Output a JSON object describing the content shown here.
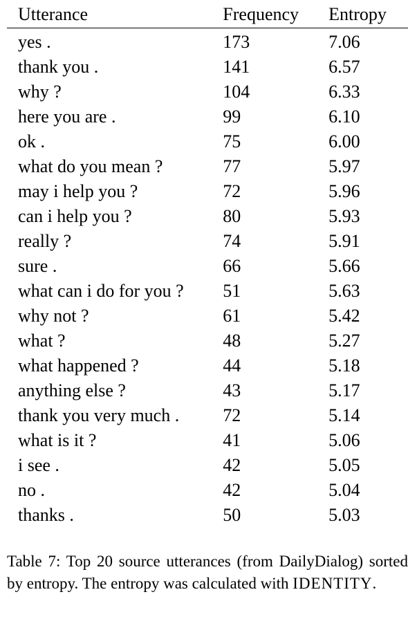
{
  "table": {
    "headers": {
      "utterance": "Utterance",
      "frequency": "Frequency",
      "entropy": "Entropy"
    },
    "rows": [
      {
        "utterance": "yes .",
        "frequency": "173",
        "entropy": "7.06"
      },
      {
        "utterance": "thank you .",
        "frequency": "141",
        "entropy": "6.57"
      },
      {
        "utterance": "why ?",
        "frequency": "104",
        "entropy": "6.33"
      },
      {
        "utterance": "here you are .",
        "frequency": "99",
        "entropy": "6.10"
      },
      {
        "utterance": "ok .",
        "frequency": "75",
        "entropy": "6.00"
      },
      {
        "utterance": "what do you mean ?",
        "frequency": "77",
        "entropy": "5.97"
      },
      {
        "utterance": "may i help you ?",
        "frequency": "72",
        "entropy": "5.96"
      },
      {
        "utterance": "can i help you ?",
        "frequency": "80",
        "entropy": "5.93"
      },
      {
        "utterance": "really ?",
        "frequency": "74",
        "entropy": "5.91"
      },
      {
        "utterance": "sure .",
        "frequency": "66",
        "entropy": "5.66"
      },
      {
        "utterance": "what can i do for you ?",
        "frequency": "51",
        "entropy": "5.63"
      },
      {
        "utterance": "why not ?",
        "frequency": "61",
        "entropy": "5.42"
      },
      {
        "utterance": "what ?",
        "frequency": "48",
        "entropy": "5.27"
      },
      {
        "utterance": "what happened ?",
        "frequency": "44",
        "entropy": "5.18"
      },
      {
        "utterance": "anything else ?",
        "frequency": "43",
        "entropy": "5.17"
      },
      {
        "utterance": "thank you very much .",
        "frequency": "72",
        "entropy": "5.14"
      },
      {
        "utterance": "what is it ?",
        "frequency": "41",
        "entropy": "5.06"
      },
      {
        "utterance": "i see .",
        "frequency": "42",
        "entropy": "5.05"
      },
      {
        "utterance": "no .",
        "frequency": "42",
        "entropy": "5.04"
      },
      {
        "utterance": "thanks .",
        "frequency": "50",
        "entropy": "5.03"
      }
    ]
  },
  "caption": {
    "text": "Table 7:  Top 20 source utterances (from DailyDialog) sorted by entropy.  The entropy was calculated with ",
    "method": "IDENTITY",
    "end": "."
  }
}
